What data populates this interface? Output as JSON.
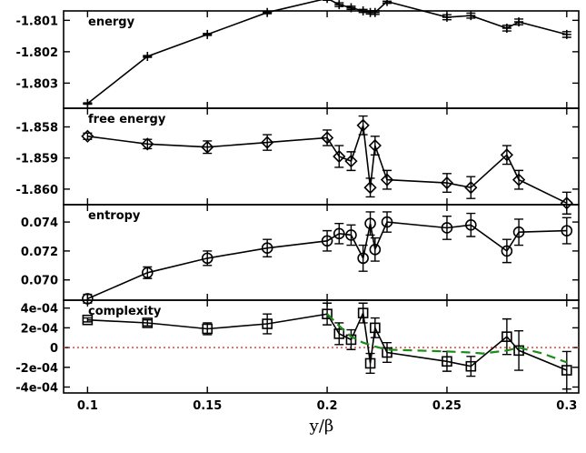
{
  "chart_data": {
    "type": "line",
    "shared_x": {
      "label": "y/β",
      "range": [
        0.09,
        0.305
      ],
      "ticks": [
        0.1,
        0.15,
        0.2,
        0.25,
        0.3
      ],
      "tick_labels": [
        "0.1",
        "0.15",
        "0.2",
        "0.25",
        "0.3"
      ]
    },
    "panels": [
      {
        "id": "energy",
        "label": "energy",
        "marker": "plus",
        "ylim": [
          -1.8038,
          -1.8007
        ],
        "yticks": [
          -1.803,
          -1.802,
          -1.801
        ],
        "ytick_labels": [
          "-1.803",
          "-1.802",
          "-1.801"
        ],
        "series": [
          {
            "x": [
              0.1,
              0.125,
              0.15,
              0.175,
              0.2,
              0.205,
              0.21,
              0.215,
              0.218,
              0.22,
              0.225,
              0.25,
              0.26,
              0.275,
              0.28,
              0.3
            ],
            "y": [
              -1.80365,
              -1.80215,
              -1.80145,
              -1.80075,
              -1.8003,
              -1.8005,
              -1.8006,
              -1.8007,
              -1.80075,
              -1.80075,
              -1.8004,
              -1.8009,
              -1.80085,
              -1.80125,
              -1.80105,
              -1.80145
            ],
            "err": [
              2e-05,
              3e-05,
              3e-05,
              4e-05,
              6e-05,
              6e-05,
              5e-05,
              5e-05,
              5e-05,
              6e-05,
              6e-05,
              8e-05,
              8e-05,
              9e-05,
              9e-05,
              9e-05
            ]
          }
        ]
      },
      {
        "id": "free-energy",
        "label": "free energy",
        "marker": "diamond",
        "ylim": [
          -1.8605,
          -1.8574
        ],
        "yticks": [
          -1.86,
          -1.859,
          -1.858
        ],
        "ytick_labels": [
          "-1.860",
          "-1.859",
          "-1.858"
        ],
        "series": [
          {
            "x": [
              0.1,
              0.125,
              0.15,
              0.175,
              0.2,
              0.205,
              0.21,
              0.215,
              0.218,
              0.22,
              0.225,
              0.25,
              0.26,
              0.275,
              0.28,
              0.3
            ],
            "y": [
              -1.8583,
              -1.85855,
              -1.85865,
              -1.8585,
              -1.85835,
              -1.85895,
              -1.8591,
              -1.85795,
              -1.85995,
              -1.8586,
              -1.8597,
              -1.8598,
              -1.85995,
              -1.8589,
              -1.8597,
              -1.86045
            ],
            "err": [
              0.0001,
              0.00015,
              0.0002,
              0.00025,
              0.00025,
              0.00035,
              0.0003,
              0.0003,
              0.0003,
              0.0003,
              0.0003,
              0.0003,
              0.00035,
              0.0003,
              0.0003,
              0.00035
            ]
          }
        ]
      },
      {
        "id": "entropy",
        "label": "entropy",
        "marker": "circle",
        "ylim": [
          0.0686,
          0.0752
        ],
        "yticks": [
          0.07,
          0.072,
          0.074
        ],
        "ytick_labels": [
          "0.070",
          "0.072",
          "0.074"
        ],
        "series": [
          {
            "x": [
              0.1,
              0.125,
              0.15,
              0.175,
              0.2,
              0.205,
              0.21,
              0.215,
              0.218,
              0.22,
              0.225,
              0.25,
              0.26,
              0.275,
              0.28,
              0.3
            ],
            "y": [
              0.0687,
              0.0705,
              0.0715,
              0.0722,
              0.0727,
              0.0732,
              0.0731,
              0.0715,
              0.0739,
              0.0721,
              0.074,
              0.0736,
              0.0738,
              0.072,
              0.0733,
              0.0734
            ],
            "err": [
              0.0003,
              0.0004,
              0.0005,
              0.0006,
              0.0007,
              0.0007,
              0.0007,
              0.0009,
              0.0008,
              0.0008,
              0.0007,
              0.0008,
              0.0008,
              0.0008,
              0.0009,
              0.0009
            ]
          }
        ]
      },
      {
        "id": "complexity",
        "label": "complexity",
        "marker": "square",
        "ylim": [
          -0.00046,
          0.00048
        ],
        "yticks": [
          -0.0004,
          -0.0002,
          0,
          0.0002,
          0.0004
        ],
        "ytick_labels": [
          "-4e-04",
          "-2e-04",
          "0",
          "2e-04",
          "4e-04"
        ],
        "series": [
          {
            "name": "",
            "style": "solid",
            "x": [
              0.1,
              0.125,
              0.15,
              0.175,
              0.2,
              0.205,
              0.21,
              0.215,
              0.218,
              0.22,
              0.225,
              0.25,
              0.26,
              0.275,
              0.28,
              0.3
            ],
            "y": [
              0.00028,
              0.00025,
              0.00019,
              0.00024,
              0.00034,
              0.00014,
              8e-05,
              0.00035,
              -0.00016,
              0.0002,
              -5e-05,
              -0.00014,
              -0.00019,
              0.00011,
              -3e-05,
              -0.00023
            ],
            "err": [
              2e-05,
              3e-05,
              6e-05,
              0.0001,
              0.00011,
              0.00011,
              0.0001,
              0.0001,
              0.0001,
              0.0001,
              0.0001,
              0.0001,
              0.0001,
              0.00018,
              0.0002,
              0.00019
            ]
          },
          {
            "name": "",
            "style": "dashed",
            "color": "#1a8c1a",
            "x": [
              0.2,
              0.205,
              0.21,
              0.215,
              0.22,
              0.225,
              0.25,
              0.26,
              0.265,
              0.275,
              0.28,
              0.29,
              0.3
            ],
            "y": [
              0.00034,
              0.00022,
              0.00011,
              5e-05,
              1e-05,
              -2e-05,
              -4e-05,
              -5e-05,
              -6e-05,
              -3e-05,
              0.0,
              -6e-05,
              -0.00015
            ]
          }
        ],
        "reference_line": {
          "y": 0,
          "style": "dotted",
          "color": "#e03030"
        }
      }
    ],
    "grid": false,
    "legend": "none"
  }
}
